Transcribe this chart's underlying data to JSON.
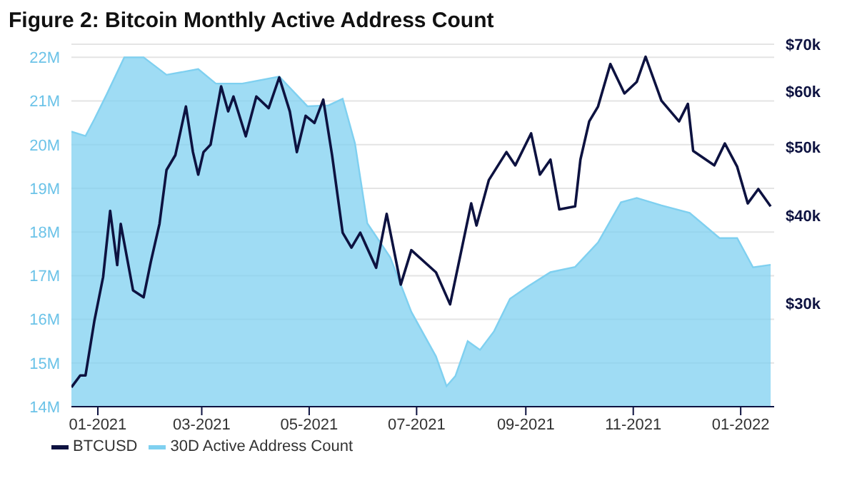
{
  "chart_data": {
    "type": "line",
    "title": "Figure 2: Bitcoin Monthly Active Address Count",
    "xlim": [
      "2020-12-17",
      "2022-01-20"
    ],
    "xticks": [
      {
        "value": "2021-01-01",
        "label": "01-2021"
      },
      {
        "value": "2021-03-01",
        "label": "03-2021"
      },
      {
        "value": "2021-05-01",
        "label": "05-2021"
      },
      {
        "value": "2021-07-01",
        "label": "07-2021"
      },
      {
        "value": "2021-09-01",
        "label": "09-2021"
      },
      {
        "value": "2021-11-01",
        "label": "11-2021"
      },
      {
        "value": "2022-01-01",
        "label": "01-2022"
      }
    ],
    "ylim": [
      14,
      22.3
    ],
    "yticks": [
      {
        "value": 14,
        "label": "14M"
      },
      {
        "value": 15,
        "label": "15M"
      },
      {
        "value": 16,
        "label": "16M"
      },
      {
        "value": 17,
        "label": "17M"
      },
      {
        "value": 18,
        "label": "18M"
      },
      {
        "value": 19,
        "label": "19M"
      },
      {
        "value": 20,
        "label": "20M"
      },
      {
        "value": 21,
        "label": "21M"
      },
      {
        "value": 22,
        "label": "22M"
      }
    ],
    "y2lim": [
      21.4,
      70
    ],
    "y2ticks": [
      {
        "value": 30,
        "label": "$30k"
      },
      {
        "value": 40,
        "label": "$40k"
      },
      {
        "value": 50,
        "label": "$50k"
      },
      {
        "value": 60,
        "label": "$60k"
      },
      {
        "value": 70,
        "label": "$70k"
      }
    ],
    "log": "y2",
    "grid": "y",
    "legend": "bottom left",
    "marker": "none",
    "series": [
      {
        "name": "BTCUSD",
        "axis": "y2",
        "color": "#0d1240",
        "x": [
          "2020-12-17",
          "2020-12-22",
          "2020-12-25",
          "2020-12-30",
          "2021-01-04",
          "2021-01-08",
          "2021-01-12",
          "2021-01-14",
          "2021-01-21",
          "2021-01-27",
          "2021-01-31",
          "2021-02-05",
          "2021-02-09",
          "2021-02-14",
          "2021-02-20",
          "2021-02-24",
          "2021-02-27",
          "2021-03-02",
          "2021-03-06",
          "2021-03-12",
          "2021-03-16",
          "2021-03-19",
          "2021-03-26",
          "2021-04-01",
          "2021-04-08",
          "2021-04-14",
          "2021-04-20",
          "2021-04-24",
          "2021-04-29",
          "2021-05-04",
          "2021-05-09",
          "2021-05-14",
          "2021-05-20",
          "2021-05-25",
          "2021-05-30",
          "2021-06-08",
          "2021-06-14",
          "2021-06-22",
          "2021-06-28",
          "2021-07-12",
          "2021-07-20",
          "2021-08-01",
          "2021-08-04",
          "2021-08-11",
          "2021-08-21",
          "2021-08-26",
          "2021-09-04",
          "2021-09-09",
          "2021-09-15",
          "2021-09-20",
          "2021-09-29",
          "2021-10-02",
          "2021-10-07",
          "2021-10-12",
          "2021-10-19",
          "2021-10-27",
          "2021-11-03",
          "2021-11-08",
          "2021-11-17",
          "2021-11-27",
          "2021-12-02",
          "2021-12-05",
          "2021-12-17",
          "2021-12-23",
          "2021-12-30",
          "2022-01-05",
          "2022-01-11",
          "2022-01-18"
        ],
        "values": [
          22.8,
          23.7,
          23.7,
          28.3,
          32.7,
          40.6,
          34.0,
          38.9,
          31.3,
          30.6,
          34.3,
          38.9,
          46.4,
          48.7,
          57.1,
          49.2,
          45.7,
          49.2,
          50.4,
          61.0,
          56.2,
          59.0,
          51.8,
          59.0,
          56.8,
          62.8,
          56.2,
          49.2,
          55.4,
          54.1,
          58.4,
          48.7,
          37.8,
          36.0,
          37.8,
          33.7,
          40.2,
          31.9,
          35.7,
          33.2,
          29.9,
          41.6,
          38.7,
          44.9,
          49.2,
          47.1,
          52.3,
          45.7,
          48.0,
          40.8,
          41.2,
          48.0,
          54.4,
          57.1,
          65.6,
          59.6,
          61.9,
          67.2,
          58.2,
          54.4,
          57.6,
          49.4,
          47.1,
          50.6,
          46.9,
          41.6,
          43.6,
          41.2
        ]
      },
      {
        "name": "30D Active Address Count",
        "type": "area",
        "color": "#7fd0f0",
        "x": [
          "2020-12-17",
          "2020-12-25",
          "2020-12-30",
          "2021-01-06",
          "2021-01-16",
          "2021-01-27",
          "2021-02-09",
          "2021-02-27",
          "2021-03-09",
          "2021-03-24",
          "2021-04-14",
          "2021-04-30",
          "2021-05-12",
          "2021-05-20",
          "2021-05-27",
          "2021-06-03",
          "2021-06-16",
          "2021-06-28",
          "2021-07-12",
          "2021-07-18",
          "2021-07-23",
          "2021-07-30",
          "2021-08-06",
          "2021-08-14",
          "2021-08-23",
          "2021-09-02",
          "2021-09-15",
          "2021-09-29",
          "2021-10-12",
          "2021-10-25",
          "2021-11-03",
          "2021-11-17",
          "2021-12-03",
          "2021-12-20",
          "2021-12-30",
          "2022-01-08",
          "2022-01-18"
        ],
        "values": [
          20.3,
          20.2,
          20.58,
          21.15,
          22.0,
          22.0,
          21.6,
          21.73,
          21.4,
          21.4,
          21.56,
          20.88,
          20.9,
          21.05,
          20.03,
          18.2,
          17.42,
          16.17,
          15.15,
          14.47,
          14.7,
          15.5,
          15.3,
          15.73,
          16.47,
          16.75,
          17.08,
          17.2,
          17.76,
          18.68,
          18.78,
          18.61,
          18.44,
          17.86,
          17.86,
          17.19,
          17.25
        ]
      }
    ]
  }
}
